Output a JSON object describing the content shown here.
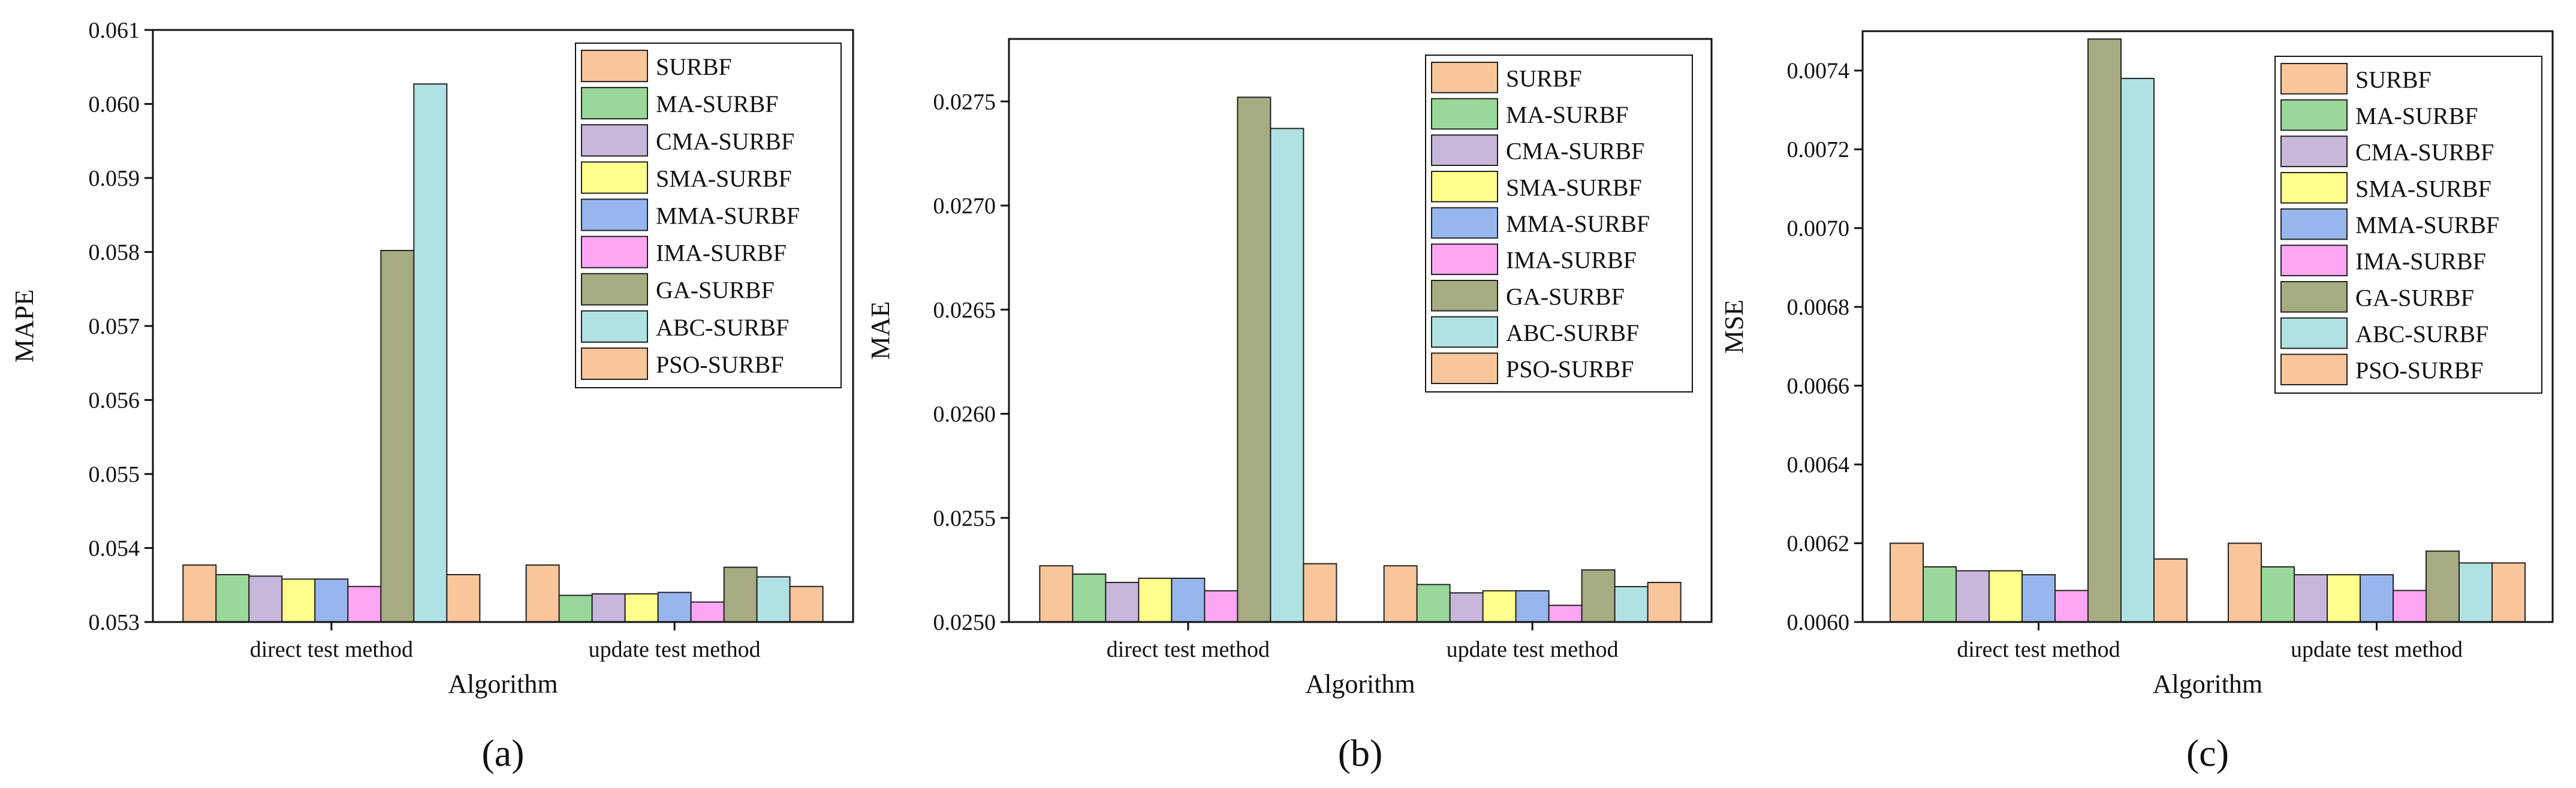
{
  "series_names": [
    "SURBF",
    "MA-SURBF",
    "CMA-SURBF",
    "SMA-SURBF",
    "MMA-SURBF",
    "IMA-SURBF",
    "GA-SURBF",
    "ABC-SURBF",
    "PSO-SURBF"
  ],
  "series_colors": [
    "#f9c59a",
    "#9ad79a",
    "#c8b7da",
    "#ffff8c",
    "#98b6ee",
    "#fca6f4",
    "#a7ab82",
    "#b0e2e4",
    "#f9c59a"
  ],
  "chart_data": [
    {
      "type": "bar",
      "panel_label": "(a)",
      "xlabel": "Algorithm",
      "ylabel": "MAPE",
      "categories": [
        "direct test method",
        "update test method"
      ],
      "ylim": [
        0.053,
        0.061
      ],
      "yticks": [
        "0.053",
        "0.054",
        "0.055",
        "0.056",
        "0.057",
        "0.058",
        "0.059",
        "0.060",
        "0.061"
      ],
      "legend": "top-right",
      "series": [
        {
          "name": "SURBF",
          "values": [
            0.05377,
            0.05377
          ]
        },
        {
          "name": "MA-SURBF",
          "values": [
            0.05364,
            0.05336
          ]
        },
        {
          "name": "CMA-SURBF",
          "values": [
            0.05362,
            0.05338
          ]
        },
        {
          "name": "SMA-SURBF",
          "values": [
            0.05358,
            0.05338
          ]
        },
        {
          "name": "MMA-SURBF",
          "values": [
            0.05358,
            0.0534
          ]
        },
        {
          "name": "IMA-SURBF",
          "values": [
            0.05348,
            0.05327
          ]
        },
        {
          "name": "GA-SURBF",
          "values": [
            0.05802,
            0.05374
          ]
        },
        {
          "name": "ABC-SURBF",
          "values": [
            0.06027,
            0.05361
          ]
        },
        {
          "name": "PSO-SURBF",
          "values": [
            0.05364,
            0.05348
          ]
        }
      ]
    },
    {
      "type": "bar",
      "panel_label": "(b)",
      "xlabel": "Algorithm",
      "ylabel": "MAE",
      "categories": [
        "direct test method",
        "update test method"
      ],
      "ylim": [
        0.025,
        0.0278
      ],
      "yticks": [
        "0.0250",
        "0.0255",
        "0.0260",
        "0.0265",
        "0.0270",
        "0.0275"
      ],
      "legend": "top-right",
      "series": [
        {
          "name": "SURBF",
          "values": [
            0.02527,
            0.02527
          ]
        },
        {
          "name": "MA-SURBF",
          "values": [
            0.02523,
            0.02518
          ]
        },
        {
          "name": "CMA-SURBF",
          "values": [
            0.02519,
            0.02514
          ]
        },
        {
          "name": "SMA-SURBF",
          "values": [
            0.02521,
            0.02515
          ]
        },
        {
          "name": "MMA-SURBF",
          "values": [
            0.02521,
            0.02515
          ]
        },
        {
          "name": "IMA-SURBF",
          "values": [
            0.02515,
            0.02508
          ]
        },
        {
          "name": "GA-SURBF",
          "values": [
            0.02752,
            0.02525
          ]
        },
        {
          "name": "ABC-SURBF",
          "values": [
            0.02737,
            0.02517
          ]
        },
        {
          "name": "PSO-SURBF",
          "values": [
            0.02528,
            0.02519
          ]
        }
      ]
    },
    {
      "type": "bar",
      "panel_label": "(c)",
      "xlabel": "Algorithm",
      "ylabel": "MSE",
      "categories": [
        "direct test method",
        "update test method"
      ],
      "ylim": [
        0.006,
        0.0075
      ],
      "yticks": [
        "0.0060",
        "0.0062",
        "0.0064",
        "0.0066",
        "0.0068",
        "0.0070",
        "0.0072",
        "0.0074"
      ],
      "legend": "top-right",
      "series": [
        {
          "name": "SURBF",
          "values": [
            0.0062,
            0.0062
          ]
        },
        {
          "name": "MA-SURBF",
          "values": [
            0.00614,
            0.00614
          ]
        },
        {
          "name": "CMA-SURBF",
          "values": [
            0.00613,
            0.00612
          ]
        },
        {
          "name": "SMA-SURBF",
          "values": [
            0.00613,
            0.00612
          ]
        },
        {
          "name": "MMA-SURBF",
          "values": [
            0.00612,
            0.00612
          ]
        },
        {
          "name": "IMA-SURBF",
          "values": [
            0.00608,
            0.00608
          ]
        },
        {
          "name": "GA-SURBF",
          "values": [
            0.00748,
            0.00618
          ]
        },
        {
          "name": "ABC-SURBF",
          "values": [
            0.00738,
            0.00615
          ]
        },
        {
          "name": "PSO-SURBF",
          "values": [
            0.00616,
            0.00615
          ]
        }
      ]
    }
  ]
}
